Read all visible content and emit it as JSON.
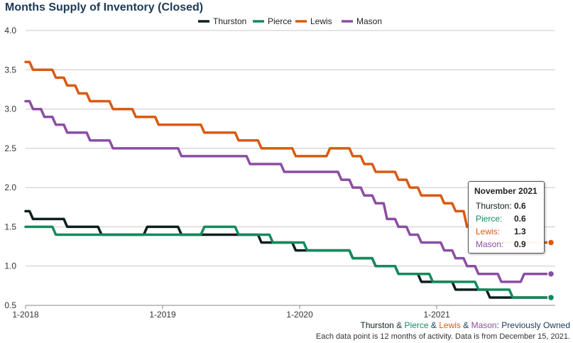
{
  "page": {
    "title": "Months Supply of Inventory (Closed)",
    "footer": {
      "names": [
        "Thurston",
        "Pierce",
        "Lewis",
        "Mason"
      ],
      "separator": " & ",
      "suffix": ": Previously Owned",
      "note": "Each data point is 12 months of activity. Data is from December 15, 2021."
    }
  },
  "colors": {
    "Thurston": "#0d1f1f",
    "Pierce": "#138a5e",
    "Lewis": "#d95a12",
    "Mason": "#8a4ea3",
    "grid": "#c8c8c8",
    "axis_text": "#333333"
  },
  "tooltip": {
    "title": "November 2021",
    "rows": [
      {
        "label": "Thurston:",
        "value": "0.6"
      },
      {
        "label": "Pierce:",
        "value": "0.6"
      },
      {
        "label": "Lewis:",
        "value": "1.3"
      },
      {
        "label": "Mason:",
        "value": "0.9"
      }
    ]
  },
  "chart_data": {
    "type": "line",
    "title": "Months Supply of Inventory (Closed)",
    "xlabel": "",
    "ylabel": "",
    "x_start": "2018-01",
    "x_end": "2021-11",
    "x_ticks": [
      "1-2018",
      "1-2019",
      "1-2020",
      "1-2021"
    ],
    "y_ticks": [
      "0.5",
      "1.0",
      "1.5",
      "2.0",
      "2.5",
      "3.0",
      "3.5",
      "4.0"
    ],
    "ylim": [
      0.5,
      4.0
    ],
    "grid": true,
    "legend": "top",
    "series": [
      {
        "name": "Thurston",
        "values": [
          1.7,
          1.6,
          1.6,
          1.6,
          1.5,
          1.5,
          1.5,
          1.4,
          1.4,
          1.4,
          1.4,
          1.5,
          1.5,
          1.5,
          1.4,
          1.4,
          1.4,
          1.4,
          1.4,
          1.4,
          1.4,
          1.3,
          1.3,
          1.3,
          1.2,
          1.2,
          1.2,
          1.2,
          1.2,
          1.1,
          1.1,
          1.0,
          1.0,
          0.9,
          0.9,
          0.8,
          0.8,
          0.8,
          0.7,
          0.7,
          0.7,
          0.6,
          0.6,
          0.6,
          0.6,
          0.6,
          0.6
        ]
      },
      {
        "name": "Pierce",
        "values": [
          1.5,
          1.5,
          1.5,
          1.4,
          1.4,
          1.4,
          1.4,
          1.4,
          1.4,
          1.4,
          1.4,
          1.4,
          1.4,
          1.4,
          1.4,
          1.4,
          1.5,
          1.5,
          1.5,
          1.4,
          1.4,
          1.4,
          1.3,
          1.3,
          1.3,
          1.2,
          1.2,
          1.2,
          1.2,
          1.1,
          1.1,
          1.0,
          1.0,
          0.9,
          0.9,
          0.9,
          0.8,
          0.8,
          0.8,
          0.8,
          0.7,
          0.7,
          0.7,
          0.6,
          0.6,
          0.6,
          0.6
        ]
      },
      {
        "name": "Lewis",
        "values": [
          3.6,
          3.5,
          3.5,
          3.4,
          3.3,
          3.2,
          3.1,
          3.1,
          3.0,
          3.0,
          2.9,
          2.9,
          2.8,
          2.8,
          2.8,
          2.8,
          2.7,
          2.7,
          2.7,
          2.6,
          2.6,
          2.5,
          2.5,
          2.5,
          2.4,
          2.4,
          2.4,
          2.5,
          2.5,
          2.4,
          2.3,
          2.2,
          2.2,
          2.1,
          2.0,
          1.9,
          1.9,
          1.8,
          1.7,
          1.5,
          1.4,
          1.3,
          1.3,
          1.3,
          1.3,
          1.3,
          1.3
        ]
      },
      {
        "name": "Mason",
        "values": [
          3.1,
          3.0,
          2.9,
          2.8,
          2.7,
          2.7,
          2.6,
          2.6,
          2.5,
          2.5,
          2.5,
          2.5,
          2.5,
          2.5,
          2.4,
          2.4,
          2.4,
          2.4,
          2.4,
          2.4,
          2.3,
          2.3,
          2.3,
          2.2,
          2.2,
          2.2,
          2.2,
          2.2,
          2.1,
          2.0,
          1.9,
          1.8,
          1.6,
          1.5,
          1.4,
          1.3,
          1.3,
          1.2,
          1.1,
          1.0,
          0.9,
          0.9,
          0.8,
          0.8,
          0.9,
          0.9,
          0.9
        ]
      }
    ]
  }
}
